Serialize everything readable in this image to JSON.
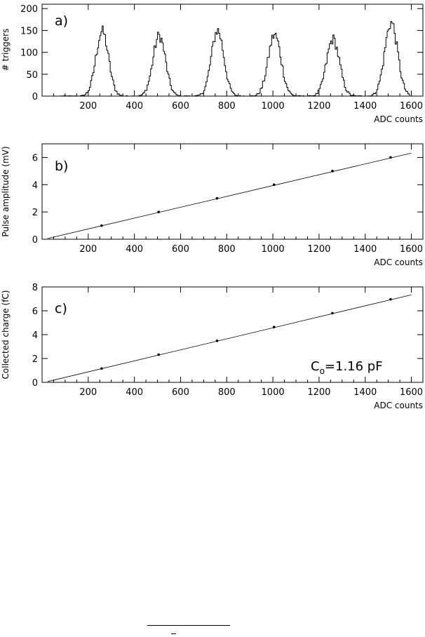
{
  "chart_data": [
    {
      "panel_label": "a)",
      "type": "histogram",
      "xlabel": "ADC counts",
      "ylabel": "# triggers",
      "xlim": [
        0,
        1650
      ],
      "ylim": [
        0,
        210
      ],
      "xticks": [
        200,
        400,
        600,
        800,
        1000,
        1200,
        1400,
        1600
      ],
      "yticks": [
        0,
        50,
        100,
        150,
        200
      ],
      "peaks": [
        {
          "center": 258,
          "height": 148,
          "sigma": 27
        },
        {
          "center": 505,
          "height": 138,
          "sigma": 27
        },
        {
          "center": 758,
          "height": 150,
          "sigma": 27
        },
        {
          "center": 1005,
          "height": 140,
          "sigma": 28
        },
        {
          "center": 1258,
          "height": 130,
          "sigma": 28
        },
        {
          "center": 1510,
          "height": 168,
          "sigma": 28
        }
      ],
      "line_color": "#000000"
    },
    {
      "panel_label": "b)",
      "type": "scatter",
      "xlabel": "ADC counts",
      "ylabel": "Pulse amplitude (mV)",
      "xlim": [
        0,
        1650
      ],
      "ylim": [
        0,
        7
      ],
      "xticks": [
        200,
        400,
        600,
        800,
        1000,
        1200,
        1400,
        1600
      ],
      "yticks": [
        0,
        2,
        4,
        6
      ],
      "x": [
        258,
        505,
        758,
        1005,
        1258,
        1510
      ],
      "y": [
        1,
        2,
        3,
        4,
        5,
        6
      ],
      "fit_line": {
        "x": [
          25,
          1600
        ],
        "y": [
          0.06,
          6.32
        ]
      }
    },
    {
      "panel_label": "c)",
      "type": "scatter",
      "xlabel": "ADC counts",
      "ylabel": "Collected charge (fC)",
      "xlim": [
        0,
        1650
      ],
      "ylim": [
        0,
        8
      ],
      "xticks": [
        200,
        400,
        600,
        800,
        1000,
        1200,
        1400,
        1600
      ],
      "yticks": [
        0,
        2,
        4,
        6,
        8
      ],
      "x": [
        258,
        505,
        758,
        1005,
        1258,
        1510
      ],
      "y": [
        1.16,
        2.32,
        3.48,
        4.64,
        5.8,
        6.96
      ],
      "fit_line": {
        "x": [
          25,
          1600
        ],
        "y": [
          0.07,
          7.34
        ]
      },
      "annotation": {
        "main": "C",
        "sub": "o",
        "rest": "=1.16 pF"
      }
    }
  ]
}
